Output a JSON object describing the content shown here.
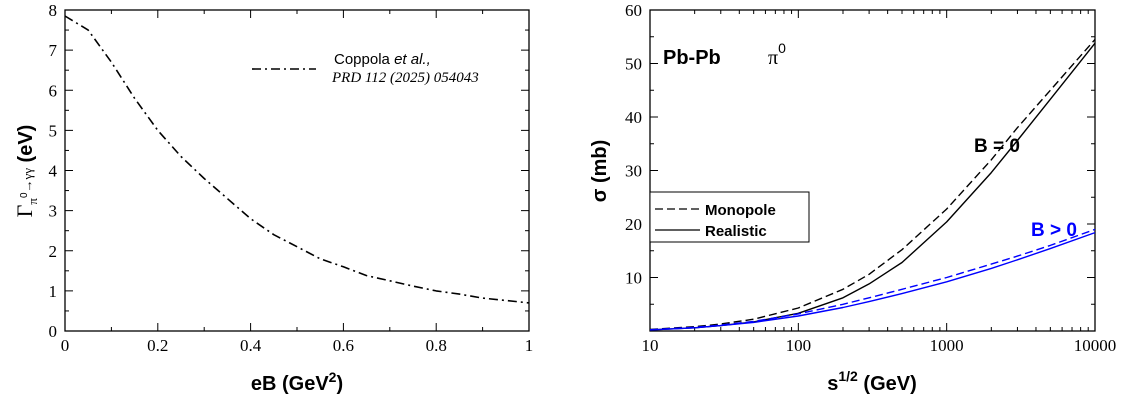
{
  "chart_data": [
    {
      "type": "line",
      "xlabel": "eB (GeV²)",
      "ylabel": "Γ π⁰→γγ (eV)",
      "xlim": [
        0,
        1
      ],
      "ylim": [
        0,
        8
      ],
      "x_ticks": [
        "0",
        "0.2",
        "0.4",
        "0.6",
        "0.8",
        "1"
      ],
      "y_ticks": [
        "0",
        "1",
        "2",
        "3",
        "4",
        "5",
        "6",
        "7",
        "8"
      ],
      "legend": {
        "name": "Coppola",
        "name_italic": "et al.,",
        "ref": "PRD 112 (2025) 054043",
        "placement": "top-right"
      },
      "series": [
        {
          "name": "Coppola et al., PRD 112 (2025) 054043",
          "style": "dash-dot",
          "color": "#000000",
          "x": [
            0,
            0.05,
            0.1,
            0.15,
            0.2,
            0.25,
            0.3,
            0.35,
            0.4,
            0.45,
            0.5,
            0.55,
            0.6,
            0.65,
            0.7,
            0.75,
            0.8,
            0.85,
            0.9,
            0.95,
            1.0
          ],
          "y": [
            7.85,
            7.5,
            6.7,
            5.8,
            5.0,
            4.35,
            3.8,
            3.3,
            2.8,
            2.4,
            2.1,
            1.8,
            1.6,
            1.38,
            1.25,
            1.12,
            1.0,
            0.92,
            0.82,
            0.76,
            0.7
          ]
        }
      ]
    },
    {
      "type": "line",
      "xlabel": "s^1/2 (GeV)",
      "xlabel_base": "s",
      "xlabel_sup": "1/2",
      "xlabel_unit": "(GeV)",
      "ylabel": "σ (mb)",
      "x_scale": "log",
      "xlim": [
        10,
        10000
      ],
      "ylim": [
        0,
        60
      ],
      "x_ticks": [
        "10",
        "100",
        "1000",
        "10000"
      ],
      "y_ticks": [
        "10",
        "20",
        "30",
        "40",
        "50",
        "60"
      ],
      "annotations": {
        "system": "Pb-Pb",
        "particle": "π",
        "particle_sup": "0",
        "b_zero": "B = 0",
        "b_pos": "B > 0"
      },
      "legend": {
        "entries": [
          "Monopole",
          "Realistic"
        ],
        "placement": "left"
      },
      "series": [
        {
          "name": "Monopole",
          "group": "B = 0",
          "color": "#000000",
          "style": "dashed",
          "x": [
            10,
            20,
            30,
            50,
            100,
            200,
            300,
            500,
            1000,
            2000,
            3000,
            5000,
            10000
          ],
          "y": [
            0.3,
            0.8,
            1.3,
            2.2,
            4.3,
            7.8,
            10.6,
            15.2,
            22.8,
            32.0,
            38.0,
            45.0,
            54.5
          ]
        },
        {
          "name": "Realistic",
          "group": "B = 0",
          "color": "#000000",
          "style": "solid",
          "x": [
            10,
            20,
            30,
            50,
            100,
            200,
            300,
            500,
            1000,
            2000,
            3000,
            5000,
            10000
          ],
          "y": [
            0.2,
            0.6,
            1.0,
            1.7,
            3.3,
            6.2,
            8.8,
            12.8,
            20.4,
            29.6,
            35.6,
            43.3,
            53.8
          ]
        },
        {
          "name": "Monopole",
          "group": "B > 0",
          "color": "#0000ff",
          "style": "dashed",
          "x": [
            10,
            20,
            30,
            50,
            100,
            200,
            300,
            500,
            1000,
            2000,
            3000,
            5000,
            10000
          ],
          "y": [
            0.25,
            0.7,
            1.1,
            1.8,
            3.2,
            5.0,
            6.2,
            7.8,
            10.0,
            12.5,
            14.0,
            16.0,
            19.0
          ]
        },
        {
          "name": "Realistic",
          "group": "B > 0",
          "color": "#0000ff",
          "style": "solid",
          "x": [
            10,
            20,
            30,
            50,
            100,
            200,
            300,
            500,
            1000,
            2000,
            3000,
            5000,
            10000
          ],
          "y": [
            0.2,
            0.6,
            1.0,
            1.6,
            2.8,
            4.4,
            5.5,
            7.0,
            9.2,
            11.7,
            13.3,
            15.4,
            18.4
          ]
        }
      ]
    }
  ]
}
